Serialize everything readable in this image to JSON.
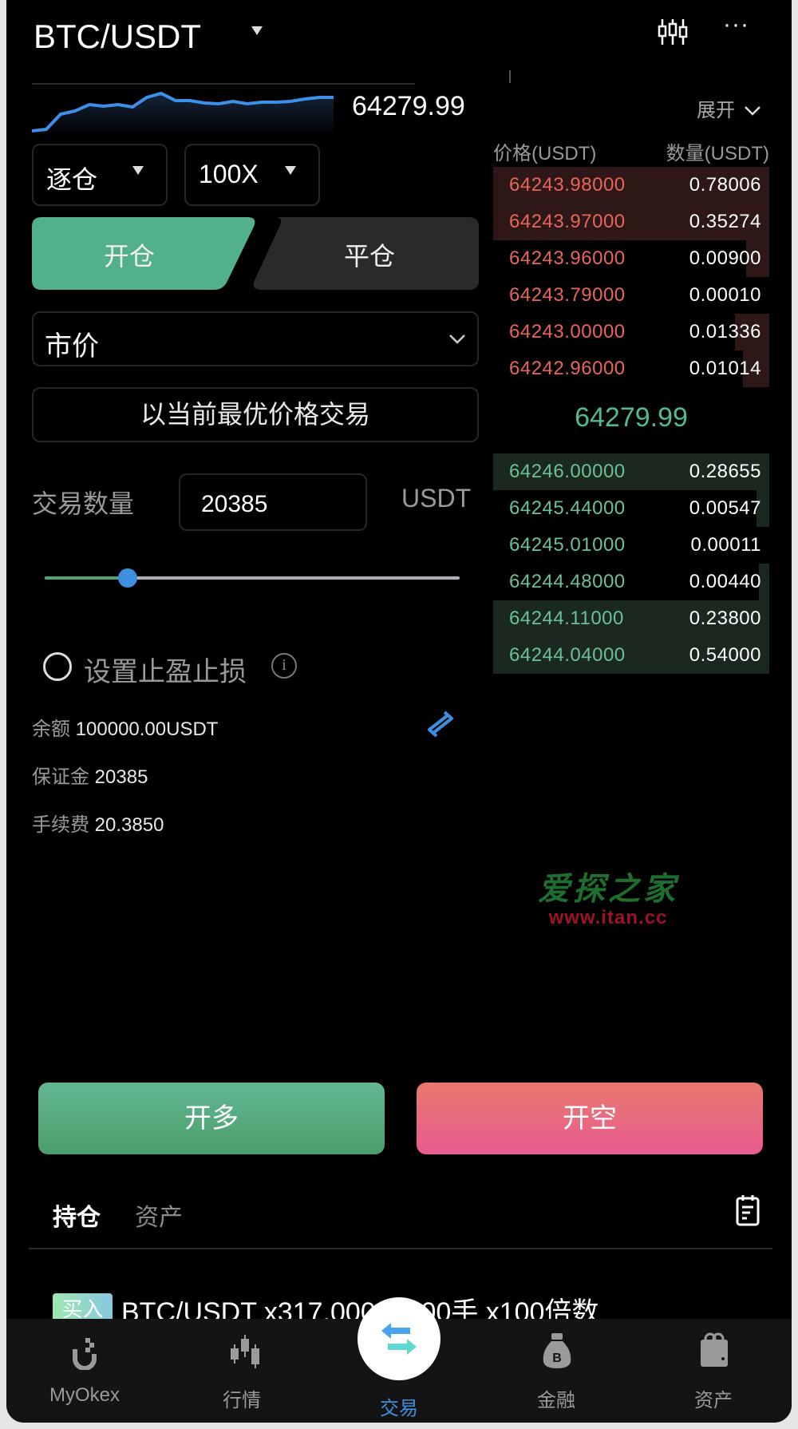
{
  "header": {
    "pair": "BTC/USDT",
    "icons": [
      "dropdown-triangle-icon",
      "candlestick-chart-icon",
      "more-icon"
    ]
  },
  "mini_chart": {
    "last_price": "64279.99",
    "line_color": "#3d8fe8",
    "sparkline_levels": [
      0,
      4,
      42,
      50,
      66,
      62,
      66,
      60,
      84,
      94,
      76,
      76,
      70,
      68,
      74,
      68,
      72,
      72,
      74,
      80,
      84,
      84
    ]
  },
  "expand_label": "展开",
  "margin_mode": "逐仓",
  "leverage": "100X",
  "tabs": {
    "open": "开仓",
    "close": "平仓"
  },
  "order_type": "市价",
  "best_price_label": "以当前最优价格交易",
  "quantity": {
    "label": "交易数量",
    "value": "20385",
    "unit": "USDT",
    "slider_fraction": 0.2
  },
  "tpsl": {
    "label": "设置止盈止损",
    "checked": false
  },
  "balance": {
    "label": "余额",
    "value": "100000.00USDT"
  },
  "margin": {
    "label": "保证金",
    "value": "20385"
  },
  "fee": {
    "label": "手续费",
    "value": "20.3850"
  },
  "orderbook": {
    "price_header": "价格(USDT)",
    "qty_header": "数量(USDT)",
    "asks": [
      {
        "price": "64243.98000",
        "qty": "0.78006",
        "depth": 1.0
      },
      {
        "price": "64243.97000",
        "qty": "0.35274",
        "depth": 1.0
      },
      {
        "price": "64243.96000",
        "qty": "0.00900",
        "depth": 0.085
      },
      {
        "price": "64243.79000",
        "qty": "0.00010",
        "depth": 0
      },
      {
        "price": "64243.00000",
        "qty": "0.01336",
        "depth": 0.125
      },
      {
        "price": "64242.96000",
        "qty": "0.01014",
        "depth": 0.095
      }
    ],
    "mid_price": "64279.99",
    "bids": [
      {
        "price": "64246.00000",
        "qty": "0.28655",
        "depth": 1.0
      },
      {
        "price": "64245.44000",
        "qty": "0.00547",
        "depth": 0.046
      },
      {
        "price": "64245.01000",
        "qty": "0.00011",
        "depth": 0
      },
      {
        "price": "64244.48000",
        "qty": "0.00440",
        "depth": 0.038
      },
      {
        "price": "64244.11000",
        "qty": "0.23800",
        "depth": 1.0
      },
      {
        "price": "64244.04000",
        "qty": "0.54000",
        "depth": 1.0
      }
    ]
  },
  "watermark": {
    "title": "爱探之家",
    "url": "www.itan.cc"
  },
  "actions": {
    "long": "开多",
    "short": "开空"
  },
  "bottom_tabs": {
    "positions": "持仓",
    "assets": "资产"
  },
  "position": {
    "badge": "买入",
    "text": "BTC/USDT x317.00000000手 x100倍数"
  },
  "nav": [
    {
      "label": "MyOkex",
      "icon": "myokex-icon"
    },
    {
      "label": "行情",
      "icon": "market-candles-icon"
    },
    {
      "label": "交易",
      "icon": "trade-swap-icon",
      "active": true
    },
    {
      "label": "金融",
      "icon": "money-bag-icon"
    },
    {
      "label": "资产",
      "icon": "wallet-icon"
    }
  ],
  "colors": {
    "ask": "#e8655a",
    "bid": "#6cc095",
    "accent_green": "#52b08a",
    "accent_blue": "#3d8fe0",
    "ask_depth": "#2e1717",
    "bid_depth": "#1a2820"
  }
}
